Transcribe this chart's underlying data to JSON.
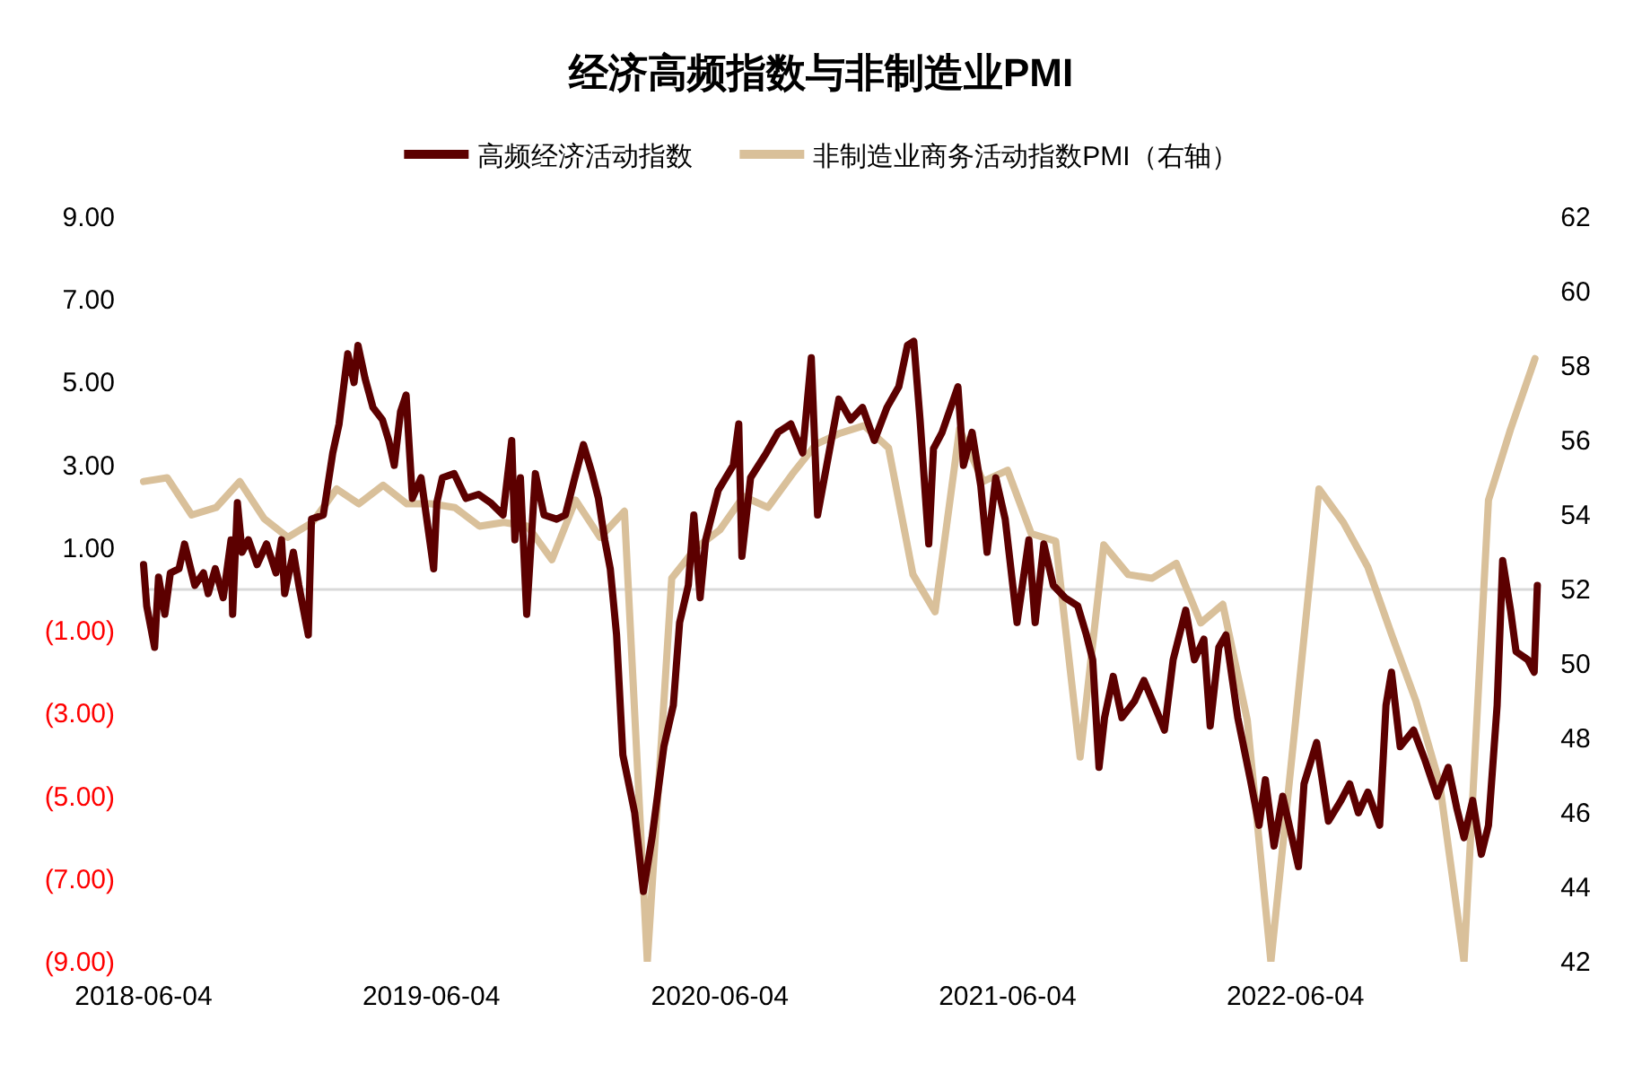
{
  "chart_data": {
    "type": "line",
    "title": "经济高频指数与非制造业PMI",
    "legend": "top",
    "grid": false,
    "marker": "none",
    "line_style": "solid",
    "xlim": [
      "2018-06-04",
      "2023-04-10"
    ],
    "xticks": [
      {
        "value": "2018-06-04",
        "label": "2018-06-04"
      },
      {
        "value": "2019-06-04",
        "label": "2019-06-04"
      },
      {
        "value": "2020-06-04",
        "label": "2020-06-04"
      },
      {
        "value": "2021-06-04",
        "label": "2021-06-04"
      },
      {
        "value": "2022-06-04",
        "label": "2022-06-04"
      }
    ],
    "ylim": [
      -9,
      9
    ],
    "yticks": [
      {
        "value": 9,
        "label": "9.00"
      },
      {
        "value": 7,
        "label": "7.00"
      },
      {
        "value": 5,
        "label": "5.00"
      },
      {
        "value": 3,
        "label": "3.00"
      },
      {
        "value": 1,
        "label": "1.00"
      },
      {
        "value": -1,
        "label": "(1.00)"
      },
      {
        "value": -3,
        "label": "(3.00)"
      },
      {
        "value": -5,
        "label": "(5.00)"
      },
      {
        "value": -7,
        "label": "(7.00)"
      },
      {
        "value": -9,
        "label": "(9.00)"
      }
    ],
    "y2lim": [
      42,
      62
    ],
    "y2ticks": [
      42,
      44,
      46,
      48,
      50,
      52,
      54,
      56,
      58,
      60,
      62
    ],
    "ref_lines": [
      {
        "axis": "y",
        "value": 0,
        "color": "#d9d9d9"
      }
    ],
    "series": [
      {
        "name": "高频经济活动指数",
        "color": "#5c0000",
        "x": [
          "2018-06-04",
          "2018-06-08",
          "2018-06-18",
          "2018-06-23",
          "2018-07-01",
          "2018-07-08",
          "2018-07-19",
          "2018-07-26",
          "2018-08-08",
          "2018-08-19",
          "2018-08-25",
          "2018-09-03",
          "2018-09-13",
          "2018-09-23",
          "2018-09-25",
          "2018-10-01",
          "2018-10-07",
          "2018-10-15",
          "2018-10-26",
          "2018-11-07",
          "2018-11-19",
          "2018-11-26",
          "2018-11-30",
          "2018-12-11",
          "2018-12-18",
          "2018-12-30",
          "2019-01-03",
          "2019-01-18",
          "2019-01-30",
          "2019-02-07",
          "2019-02-18",
          "2019-02-26",
          "2019-03-03",
          "2019-03-12",
          "2019-03-22",
          "2019-04-03",
          "2019-04-11",
          "2019-04-18",
          "2019-04-26",
          "2019-05-03",
          "2019-05-11",
          "2019-05-22",
          "2019-06-07",
          "2019-06-11",
          "2019-06-18",
          "2019-07-03",
          "2019-07-18",
          "2019-08-03",
          "2019-08-18",
          "2019-09-03",
          "2019-09-14",
          "2019-09-18",
          "2019-09-25",
          "2019-10-03",
          "2019-10-14",
          "2019-10-25",
          "2019-11-10",
          "2019-11-21",
          "2019-12-03",
          "2019-12-14",
          "2019-12-25",
          "2020-01-02",
          "2020-01-10",
          "2020-01-17",
          "2020-01-25",
          "2020-02-02",
          "2020-02-17",
          "2020-02-28",
          "2020-03-10",
          "2020-03-25",
          "2020-04-06",
          "2020-04-14",
          "2020-04-25",
          "2020-05-02",
          "2020-05-10",
          "2020-05-17",
          "2020-06-02",
          "2020-06-21",
          "2020-06-28",
          "2020-07-02",
          "2020-07-13",
          "2020-08-02",
          "2020-08-17",
          "2020-09-02",
          "2020-09-17",
          "2020-09-28",
          "2020-10-06",
          "2020-11-02",
          "2020-11-17",
          "2020-12-02",
          "2020-12-17",
          "2021-01-02",
          "2021-01-17",
          "2021-01-28",
          "2021-02-05",
          "2021-02-13",
          "2021-02-24",
          "2021-03-02",
          "2021-03-13",
          "2021-04-02",
          "2021-04-09",
          "2021-04-20",
          "2021-05-01",
          "2021-05-09",
          "2021-05-20",
          "2021-06-01",
          "2021-06-16",
          "2021-07-01",
          "2021-07-09",
          "2021-07-20",
          "2021-08-01",
          "2021-08-16",
          "2021-09-01",
          "2021-09-12",
          "2021-09-20",
          "2021-09-28",
          "2021-10-05",
          "2021-10-16",
          "2021-10-27",
          "2021-11-12",
          "2021-11-24",
          "2021-12-05",
          "2021-12-20",
          "2021-12-31",
          "2022-01-16",
          "2022-01-27",
          "2022-02-08",
          "2022-02-16",
          "2022-02-27",
          "2022-03-08",
          "2022-03-23",
          "2022-04-08",
          "2022-04-19",
          "2022-04-27",
          "2022-05-08",
          "2022-05-19",
          "2022-06-08",
          "2022-06-15",
          "2022-07-01",
          "2022-07-16",
          "2022-08-01",
          "2022-08-12",
          "2022-08-23",
          "2022-09-04",
          "2022-09-19",
          "2022-09-27",
          "2022-10-04",
          "2022-10-15",
          "2022-11-01",
          "2022-11-15",
          "2022-12-01",
          "2022-12-15",
          "2022-12-26",
          "2023-01-04",
          "2023-01-15",
          "2023-01-26",
          "2023-02-04",
          "2023-02-15",
          "2023-02-22",
          "2023-03-04",
          "2023-03-11",
          "2023-03-26",
          "2023-04-03",
          "2023-04-07"
        ],
        "values": [
          0.6,
          -0.4,
          -1.4,
          0.3,
          -0.6,
          0.4,
          0.5,
          1.1,
          0.1,
          0.4,
          -0.1,
          0.5,
          -0.2,
          1.2,
          -0.6,
          2.1,
          0.9,
          1.2,
          0.6,
          1.1,
          0.4,
          1.2,
          -0.1,
          0.9,
          0.1,
          -1.1,
          1.7,
          1.8,
          3.3,
          4.0,
          5.7,
          5.0,
          5.9,
          5.1,
          4.4,
          4.1,
          3.6,
          3.0,
          4.3,
          4.7,
          2.2,
          2.7,
          0.5,
          2.1,
          2.7,
          2.8,
          2.2,
          2.3,
          2.1,
          1.8,
          3.6,
          1.2,
          2.7,
          -0.6,
          2.8,
          1.8,
          1.7,
          1.8,
          2.7,
          3.5,
          2.8,
          2.2,
          1.2,
          0.5,
          -1.1,
          -4.0,
          -5.4,
          -7.3,
          -6.0,
          -3.8,
          -2.8,
          -0.8,
          0.1,
          1.8,
          -0.2,
          1.2,
          2.4,
          3.0,
          4.0,
          0.8,
          2.7,
          3.3,
          3.8,
          4.0,
          3.3,
          5.6,
          1.8,
          4.6,
          4.1,
          4.4,
          3.6,
          4.4,
          4.9,
          5.9,
          6.0,
          4.1,
          1.1,
          3.4,
          3.8,
          4.9,
          3.0,
          3.8,
          2.5,
          0.9,
          2.7,
          1.7,
          -0.8,
          1.2,
          -0.8,
          1.1,
          0.1,
          -0.2,
          -0.4,
          -1.1,
          -1.7,
          -4.3,
          -3.1,
          -2.1,
          -3.1,
          -2.7,
          -2.2,
          -2.7,
          -3.4,
          -1.7,
          -0.5,
          -1.7,
          -1.2,
          -3.3,
          -1.4,
          -1.1,
          -3.1,
          -4.6,
          -5.7,
          -4.6,
          -6.2,
          -5.0,
          -6.7,
          -4.7,
          -3.7,
          -5.6,
          -5.1,
          -4.7,
          -5.4,
          -4.9,
          -5.7,
          -2.8,
          -2.0,
          -3.8,
          -3.4,
          -4.1,
          -5.0,
          -4.3,
          -5.3,
          -6.0,
          -5.1,
          -6.4,
          -5.7,
          -2.8,
          0.7,
          -0.5,
          -1.5,
          -1.7,
          -2.0,
          0.1
        ]
      },
      {
        "name": "非制造业商务活动指数PMI（右轴）",
        "color": "#d9c09a",
        "axis": "y2",
        "x": [
          "2018-06-04",
          "2018-07-04",
          "2018-08-04",
          "2018-09-04",
          "2018-10-04",
          "2018-11-04",
          "2018-12-04",
          "2019-01-04",
          "2019-02-04",
          "2019-03-04",
          "2019-04-04",
          "2019-05-04",
          "2019-06-04",
          "2019-07-04",
          "2019-08-04",
          "2019-09-04",
          "2019-10-04",
          "2019-11-04",
          "2019-12-04",
          "2020-01-04",
          "2020-02-04",
          "2020-03-04",
          "2020-04-04",
          "2020-05-04",
          "2020-06-04",
          "2020-07-04",
          "2020-08-04",
          "2020-09-04",
          "2020-10-04",
          "2020-11-04",
          "2020-12-04",
          "2021-01-04",
          "2021-02-04",
          "2021-03-04",
          "2021-04-04",
          "2021-05-04",
          "2021-06-04",
          "2021-07-04",
          "2021-08-04",
          "2021-09-04",
          "2021-10-04",
          "2021-11-04",
          "2021-12-04",
          "2022-01-04",
          "2022-02-04",
          "2022-03-04",
          "2022-04-04",
          "2022-05-04",
          "2022-06-04",
          "2022-07-04",
          "2022-08-04",
          "2022-09-04",
          "2022-10-04",
          "2022-11-04",
          "2022-12-04",
          "2023-01-04",
          "2023-02-04",
          "2023-03-04",
          "2023-04-04"
        ],
        "values": [
          54.9,
          55.0,
          54.0,
          54.2,
          54.9,
          53.9,
          53.4,
          53.8,
          54.7,
          54.3,
          54.8,
          54.3,
          54.3,
          54.2,
          53.7,
          53.8,
          53.7,
          52.8,
          54.4,
          53.4,
          54.1,
          42.0,
          52.3,
          53.1,
          53.6,
          54.5,
          54.2,
          55.1,
          55.9,
          56.2,
          56.4,
          55.8,
          52.4,
          51.4,
          56.3,
          54.9,
          55.2,
          53.5,
          53.3,
          47.5,
          53.2,
          52.4,
          52.3,
          52.7,
          51.1,
          51.6,
          48.5,
          42.0,
          48.4,
          54.7,
          53.8,
          52.6,
          50.8,
          49.0,
          46.8,
          42.0,
          54.4,
          56.3,
          58.2
        ]
      }
    ]
  }
}
